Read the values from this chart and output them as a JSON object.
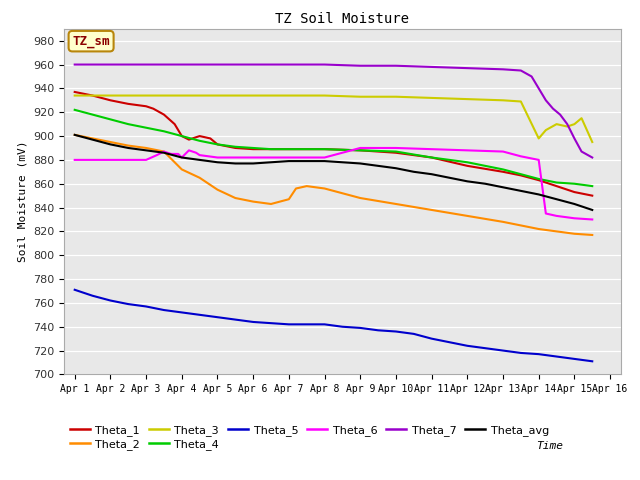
{
  "title": "TZ Soil Moisture",
  "xlabel": "Time",
  "ylabel": "Soil Moisture (mV)",
  "ylim": [
    700,
    990
  ],
  "yticks": [
    700,
    720,
    740,
    760,
    780,
    800,
    820,
    840,
    860,
    880,
    900,
    920,
    940,
    960,
    980
  ],
  "bg_color": "#e8e8e8",
  "legend_label": "TZ_sm",
  "series_order": [
    "Theta_1",
    "Theta_2",
    "Theta_3",
    "Theta_4",
    "Theta_5",
    "Theta_6",
    "Theta_7",
    "Theta_avg"
  ],
  "series": {
    "Theta_1": {
      "color": "#cc0000",
      "points": [
        [
          1,
          937
        ],
        [
          1.5,
          934
        ],
        [
          2,
          930
        ],
        [
          2.5,
          927
        ],
        [
          3,
          925
        ],
        [
          3.2,
          923
        ],
        [
          3.5,
          918
        ],
        [
          3.8,
          910
        ],
        [
          4.0,
          900
        ],
        [
          4.2,
          897
        ],
        [
          4.5,
          900
        ],
        [
          4.8,
          898
        ],
        [
          5.0,
          893
        ],
        [
          5.5,
          890
        ],
        [
          6,
          889
        ],
        [
          7,
          889
        ],
        [
          8,
          889
        ],
        [
          9,
          888
        ],
        [
          10,
          886
        ],
        [
          11,
          882
        ],
        [
          12,
          875
        ],
        [
          13,
          870
        ],
        [
          13.5,
          867
        ],
        [
          14,
          863
        ],
        [
          14.5,
          858
        ],
        [
          15,
          853
        ],
        [
          15.5,
          850
        ]
      ]
    },
    "Theta_2": {
      "color": "#ff8c00",
      "points": [
        [
          1,
          901
        ],
        [
          1.5,
          898
        ],
        [
          2,
          895
        ],
        [
          2.5,
          892
        ],
        [
          3,
          890
        ],
        [
          3.5,
          887
        ],
        [
          4.0,
          872
        ],
        [
          4.5,
          865
        ],
        [
          5.0,
          855
        ],
        [
          5.5,
          848
        ],
        [
          6.0,
          845
        ],
        [
          6.5,
          843
        ],
        [
          7.0,
          847
        ],
        [
          7.2,
          856
        ],
        [
          7.5,
          858
        ],
        [
          8.0,
          856
        ],
        [
          8.5,
          852
        ],
        [
          9,
          848
        ],
        [
          10,
          843
        ],
        [
          11,
          838
        ],
        [
          12,
          833
        ],
        [
          13,
          828
        ],
        [
          13.5,
          825
        ],
        [
          14,
          822
        ],
        [
          14.5,
          820
        ],
        [
          15,
          818
        ],
        [
          15.5,
          817
        ]
      ]
    },
    "Theta_3": {
      "color": "#cccc00",
      "points": [
        [
          1,
          934
        ],
        [
          2,
          934
        ],
        [
          3,
          934
        ],
        [
          4,
          934
        ],
        [
          5,
          934
        ],
        [
          6,
          934
        ],
        [
          7,
          934
        ],
        [
          8,
          934
        ],
        [
          9,
          933
        ],
        [
          10,
          933
        ],
        [
          11,
          932
        ],
        [
          12,
          931
        ],
        [
          13,
          930
        ],
        [
          13.5,
          929
        ],
        [
          14,
          898
        ],
        [
          14.2,
          905
        ],
        [
          14.5,
          910
        ],
        [
          14.8,
          908
        ],
        [
          15.0,
          910
        ],
        [
          15.2,
          915
        ],
        [
          15.5,
          895
        ]
      ]
    },
    "Theta_4": {
      "color": "#00cc00",
      "points": [
        [
          1,
          922
        ],
        [
          1.5,
          918
        ],
        [
          2,
          914
        ],
        [
          2.5,
          910
        ],
        [
          3,
          907
        ],
        [
          3.5,
          904
        ],
        [
          4.0,
          900
        ],
        [
          4.5,
          896
        ],
        [
          5.0,
          893
        ],
        [
          5.5,
          891
        ],
        [
          6.0,
          890
        ],
        [
          6.5,
          889
        ],
        [
          7,
          889
        ],
        [
          8,
          889
        ],
        [
          9,
          888
        ],
        [
          10,
          887
        ],
        [
          11,
          882
        ],
        [
          12,
          878
        ],
        [
          13,
          872
        ],
        [
          13.5,
          868
        ],
        [
          14,
          864
        ],
        [
          14.5,
          861
        ],
        [
          15,
          860
        ],
        [
          15.5,
          858
        ]
      ]
    },
    "Theta_5": {
      "color": "#0000cc",
      "points": [
        [
          1,
          771
        ],
        [
          1.5,
          766
        ],
        [
          2,
          762
        ],
        [
          2.5,
          759
        ],
        [
          3,
          757
        ],
        [
          3.5,
          754
        ],
        [
          4.0,
          752
        ],
        [
          4.5,
          750
        ],
        [
          5.0,
          748
        ],
        [
          5.5,
          746
        ],
        [
          6.0,
          744
        ],
        [
          6.5,
          743
        ],
        [
          7.0,
          742
        ],
        [
          7.5,
          742
        ],
        [
          8.0,
          742
        ],
        [
          8.5,
          740
        ],
        [
          9,
          739
        ],
        [
          9.5,
          737
        ],
        [
          10,
          736
        ],
        [
          10.5,
          734
        ],
        [
          11,
          730
        ],
        [
          11.5,
          727
        ],
        [
          12,
          724
        ],
        [
          12.5,
          722
        ],
        [
          13,
          720
        ],
        [
          13.5,
          718
        ],
        [
          14,
          717
        ],
        [
          14.5,
          715
        ],
        [
          15,
          713
        ],
        [
          15.5,
          711
        ]
      ]
    },
    "Theta_6": {
      "color": "#ff00ff",
      "points": [
        [
          1,
          880
        ],
        [
          2,
          880
        ],
        [
          3,
          880
        ],
        [
          3.3,
          884
        ],
        [
          3.5,
          887
        ],
        [
          3.7,
          885
        ],
        [
          3.9,
          885
        ],
        [
          4.0,
          882
        ],
        [
          4.1,
          885
        ],
        [
          4.2,
          888
        ],
        [
          4.3,
          887
        ],
        [
          4.4,
          886
        ],
        [
          4.5,
          884
        ],
        [
          5.0,
          882
        ],
        [
          5.5,
          882
        ],
        [
          6,
          882
        ],
        [
          7,
          882
        ],
        [
          8,
          882
        ],
        [
          9,
          890
        ],
        [
          10,
          890
        ],
        [
          11,
          889
        ],
        [
          12,
          888
        ],
        [
          13,
          887
        ],
        [
          13.5,
          883
        ],
        [
          14,
          880
        ],
        [
          14.2,
          835
        ],
        [
          14.5,
          833
        ],
        [
          15,
          831
        ],
        [
          15.5,
          830
        ]
      ]
    },
    "Theta_7": {
      "color": "#9900cc",
      "points": [
        [
          1,
          960
        ],
        [
          2,
          960
        ],
        [
          3,
          960
        ],
        [
          4,
          960
        ],
        [
          5,
          960
        ],
        [
          6,
          960
        ],
        [
          7,
          960
        ],
        [
          8,
          960
        ],
        [
          9,
          959
        ],
        [
          10,
          959
        ],
        [
          11,
          958
        ],
        [
          12,
          957
        ],
        [
          13,
          956
        ],
        [
          13.5,
          955
        ],
        [
          13.8,
          950
        ],
        [
          14.0,
          940
        ],
        [
          14.2,
          930
        ],
        [
          14.4,
          923
        ],
        [
          14.6,
          918
        ],
        [
          14.8,
          910
        ],
        [
          15.0,
          898
        ],
        [
          15.2,
          887
        ],
        [
          15.5,
          882
        ]
      ]
    },
    "Theta_avg": {
      "color": "#000000",
      "points": [
        [
          1,
          901
        ],
        [
          1.5,
          897
        ],
        [
          2,
          893
        ],
        [
          2.5,
          890
        ],
        [
          3,
          888
        ],
        [
          3.5,
          886
        ],
        [
          4.0,
          882
        ],
        [
          4.5,
          880
        ],
        [
          5.0,
          878
        ],
        [
          5.5,
          877
        ],
        [
          6.0,
          877
        ],
        [
          6.5,
          878
        ],
        [
          7.0,
          879
        ],
        [
          7.5,
          879
        ],
        [
          8.0,
          879
        ],
        [
          8.5,
          878
        ],
        [
          9,
          877
        ],
        [
          9.5,
          875
        ],
        [
          10,
          873
        ],
        [
          10.5,
          870
        ],
        [
          11,
          868
        ],
        [
          11.5,
          865
        ],
        [
          12,
          862
        ],
        [
          12.5,
          860
        ],
        [
          13,
          857
        ],
        [
          13.5,
          854
        ],
        [
          14,
          851
        ],
        [
          14.5,
          847
        ],
        [
          15,
          843
        ],
        [
          15.5,
          838
        ]
      ]
    }
  },
  "xtick_positions": [
    1,
    2,
    3,
    4,
    5,
    6,
    7,
    8,
    9,
    10,
    11,
    12,
    13,
    14,
    15,
    16
  ],
  "xtick_labels": [
    "Apr 1",
    "Apr 2",
    "Apr 3",
    "Apr 4",
    "Apr 5",
    "Apr 6",
    "Apr 7",
    "Apr 8",
    "Apr 9",
    "Apr 10",
    "Apr 11",
    "Apr 12",
    "Apr 13",
    "Apr 14",
    "Apr 15",
    "Apr 16"
  ]
}
